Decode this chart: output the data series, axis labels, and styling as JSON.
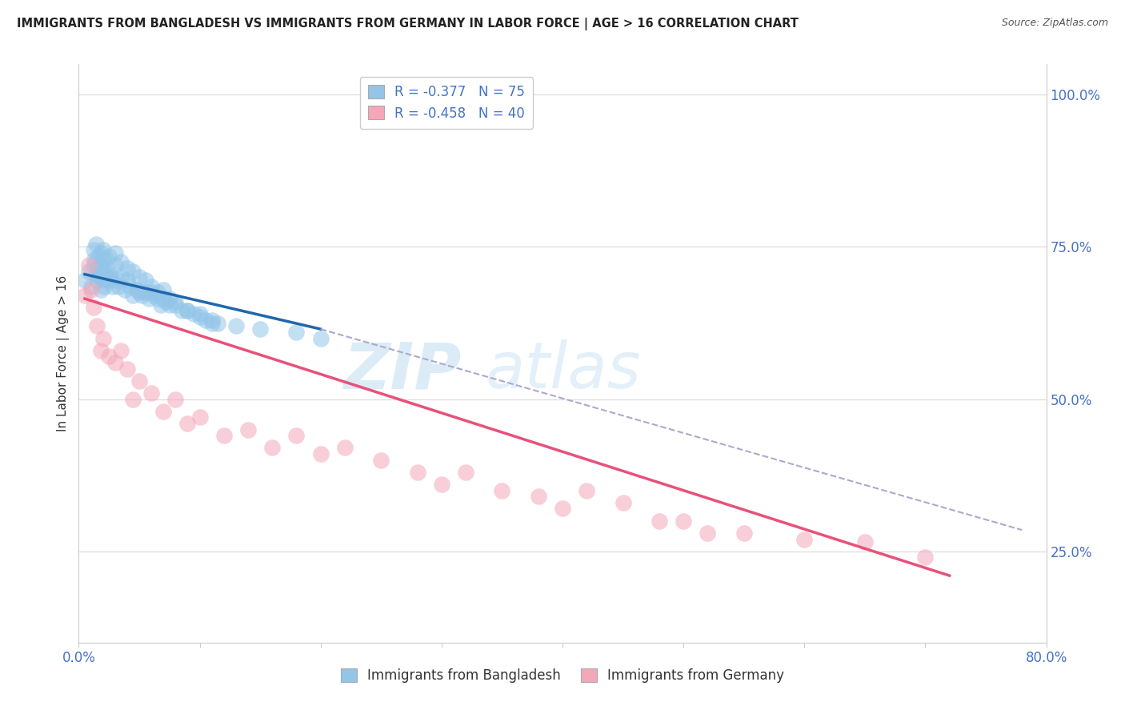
{
  "title": "IMMIGRANTS FROM BANGLADESH VS IMMIGRANTS FROM GERMANY IN LABOR FORCE | AGE > 16 CORRELATION CHART",
  "source": "Source: ZipAtlas.com",
  "ylabel": "In Labor Force | Age > 16",
  "xlim": [
    0.0,
    0.8
  ],
  "ylim": [
    0.1,
    1.05
  ],
  "xticks": [
    0.0,
    0.1,
    0.2,
    0.3,
    0.4,
    0.5,
    0.6,
    0.7,
    0.8
  ],
  "xticklabels": [
    "0.0%",
    "",
    "",
    "",
    "",
    "",
    "",
    "",
    "80.0%"
  ],
  "yticks_right": [
    0.25,
    0.5,
    0.75,
    1.0
  ],
  "yticklabels_right": [
    "25.0%",
    "50.0%",
    "75.0%",
    "100.0%"
  ],
  "R_bangladesh": -0.377,
  "N_bangladesh": 75,
  "R_germany": -0.458,
  "N_germany": 40,
  "blue_color": "#92c5e8",
  "pink_color": "#f4a7b9",
  "blue_line_color": "#2166ac",
  "pink_line_color": "#e8517a",
  "dash_color": "#aaaacc",
  "background_color": "#ffffff",
  "grid_color": "#dddddd",
  "title_fontsize": 11,
  "axis_label_fontsize": 11,
  "blue_scatter": {
    "x": [
      0.005,
      0.008,
      0.01,
      0.012,
      0.013,
      0.015,
      0.015,
      0.016,
      0.017,
      0.018,
      0.018,
      0.019,
      0.02,
      0.02,
      0.021,
      0.022,
      0.023,
      0.024,
      0.025,
      0.026,
      0.027,
      0.028,
      0.03,
      0.032,
      0.033,
      0.035,
      0.038,
      0.04,
      0.042,
      0.045,
      0.048,
      0.05,
      0.052,
      0.055,
      0.058,
      0.06,
      0.062,
      0.065,
      0.068,
      0.07,
      0.072,
      0.075,
      0.08,
      0.085,
      0.09,
      0.095,
      0.1,
      0.105,
      0.11,
      0.115,
      0.012,
      0.014,
      0.016,
      0.018,
      0.02,
      0.022,
      0.025,
      0.03,
      0.035,
      0.04,
      0.045,
      0.05,
      0.055,
      0.06,
      0.065,
      0.07,
      0.075,
      0.08,
      0.09,
      0.1,
      0.11,
      0.13,
      0.15,
      0.18,
      0.2
    ],
    "y": [
      0.695,
      0.71,
      0.685,
      0.72,
      0.73,
      0.695,
      0.705,
      0.715,
      0.7,
      0.72,
      0.68,
      0.71,
      0.73,
      0.695,
      0.685,
      0.7,
      0.715,
      0.695,
      0.7,
      0.705,
      0.695,
      0.685,
      0.72,
      0.695,
      0.685,
      0.7,
      0.68,
      0.695,
      0.685,
      0.67,
      0.68,
      0.675,
      0.67,
      0.675,
      0.665,
      0.675,
      0.67,
      0.665,
      0.655,
      0.665,
      0.66,
      0.655,
      0.655,
      0.645,
      0.645,
      0.64,
      0.635,
      0.63,
      0.625,
      0.625,
      0.745,
      0.755,
      0.735,
      0.74,
      0.745,
      0.73,
      0.735,
      0.74,
      0.725,
      0.715,
      0.71,
      0.7,
      0.695,
      0.685,
      0.675,
      0.68,
      0.665,
      0.66,
      0.645,
      0.64,
      0.63,
      0.62,
      0.615,
      0.61,
      0.6
    ]
  },
  "pink_scatter": {
    "x": [
      0.005,
      0.008,
      0.01,
      0.012,
      0.015,
      0.018,
      0.02,
      0.025,
      0.03,
      0.035,
      0.04,
      0.045,
      0.05,
      0.06,
      0.07,
      0.08,
      0.09,
      0.1,
      0.12,
      0.14,
      0.16,
      0.18,
      0.2,
      0.22,
      0.25,
      0.28,
      0.3,
      0.32,
      0.35,
      0.38,
      0.4,
      0.42,
      0.45,
      0.48,
      0.5,
      0.52,
      0.55,
      0.6,
      0.65,
      0.7
    ],
    "y": [
      0.67,
      0.72,
      0.68,
      0.65,
      0.62,
      0.58,
      0.6,
      0.57,
      0.56,
      0.58,
      0.55,
      0.5,
      0.53,
      0.51,
      0.48,
      0.5,
      0.46,
      0.47,
      0.44,
      0.45,
      0.42,
      0.44,
      0.41,
      0.42,
      0.4,
      0.38,
      0.36,
      0.38,
      0.35,
      0.34,
      0.32,
      0.35,
      0.33,
      0.3,
      0.3,
      0.28,
      0.28,
      0.27,
      0.265,
      0.24
    ]
  },
  "blue_line": {
    "x0": 0.005,
    "x1": 0.2,
    "y0": 0.705,
    "y1": 0.615
  },
  "dash_line": {
    "x0": 0.2,
    "x1": 0.78,
    "y0": 0.615,
    "y1": 0.285
  },
  "pink_line": {
    "x0": 0.005,
    "x1": 0.72,
    "y0": 0.665,
    "y1": 0.21
  }
}
